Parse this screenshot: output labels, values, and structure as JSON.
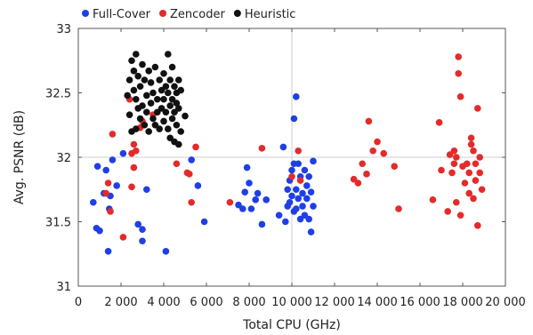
{
  "chart_data": {
    "type": "scatter",
    "title": "",
    "xlabel": "Total CPU (GHz)",
    "ylabel": "Avg. PSNR (dB)",
    "xlim": [
      0,
      20000
    ],
    "ylim": [
      31,
      33
    ],
    "x_ticks": [
      0,
      2000,
      4000,
      6000,
      8000,
      10000,
      12000,
      14000,
      16000,
      18000,
      20000
    ],
    "x_tick_labels": [
      "0",
      "2 000",
      "4 000",
      "6 000",
      "8 000",
      "10 000",
      "12 000",
      "14 000",
      "16 000",
      "18 000",
      "20 000"
    ],
    "y_ticks": [
      31,
      31.5,
      32,
      32.5,
      33
    ],
    "y_tick_labels": [
      "31",
      "31.5",
      "32",
      "32.5",
      "33"
    ],
    "grid": "major lines at x=10000 and y=32",
    "legend_position": "top",
    "series": [
      {
        "name": "Full-Cover",
        "color": "#1f3fe6",
        "points": [
          [
            700,
            31.65
          ],
          [
            850,
            31.45
          ],
          [
            900,
            31.93
          ],
          [
            1000,
            31.43
          ],
          [
            1200,
            31.72
          ],
          [
            1300,
            31.9
          ],
          [
            1400,
            31.27
          ],
          [
            1450,
            31.6
          ],
          [
            1500,
            31.7
          ],
          [
            1600,
            31.98
          ],
          [
            1800,
            31.78
          ],
          [
            2100,
            32.03
          ],
          [
            2800,
            31.48
          ],
          [
            3000,
            31.35
          ],
          [
            3000,
            31.44
          ],
          [
            3200,
            31.75
          ],
          [
            4100,
            31.27
          ],
          [
            5300,
            31.98
          ],
          [
            5600,
            31.78
          ],
          [
            5900,
            31.5
          ],
          [
            7500,
            31.63
          ],
          [
            7700,
            31.6
          ],
          [
            7800,
            31.73
          ],
          [
            7900,
            31.92
          ],
          [
            8000,
            31.8
          ],
          [
            8100,
            31.6
          ],
          [
            8300,
            31.67
          ],
          [
            8400,
            31.72
          ],
          [
            8600,
            31.48
          ],
          [
            8800,
            31.67
          ],
          [
            9400,
            31.55
          ],
          [
            9600,
            32.08
          ],
          [
            9700,
            31.5
          ],
          [
            9800,
            31.62
          ],
          [
            9800,
            31.75
          ],
          [
            9900,
            31.65
          ],
          [
            9900,
            31.82
          ],
          [
            10000,
            31.7
          ],
          [
            10000,
            31.9
          ],
          [
            10100,
            31.95
          ],
          [
            10100,
            31.58
          ],
          [
            10100,
            32.3
          ],
          [
            10200,
            31.6
          ],
          [
            10200,
            31.75
          ],
          [
            10200,
            32.47
          ],
          [
            10300,
            31.68
          ],
          [
            10300,
            31.95
          ],
          [
            10400,
            31.85
          ],
          [
            10400,
            31.52
          ],
          [
            10500,
            31.72
          ],
          [
            10500,
            31.62
          ],
          [
            10600,
            31.9
          ],
          [
            10600,
            31.55
          ],
          [
            10700,
            31.78
          ],
          [
            10700,
            31.68
          ],
          [
            10800,
            31.52
          ],
          [
            10800,
            31.85
          ],
          [
            10900,
            31.42
          ],
          [
            10900,
            31.73
          ],
          [
            11000,
            31.97
          ],
          [
            11000,
            31.62
          ]
        ]
      },
      {
        "name": "Zencoder",
        "color": "#e42a2a",
        "points": [
          [
            1300,
            31.72
          ],
          [
            1400,
            31.8
          ],
          [
            1500,
            31.58
          ],
          [
            1600,
            32.18
          ],
          [
            2100,
            31.38
          ],
          [
            2400,
            32.45
          ],
          [
            2500,
            32.03
          ],
          [
            2500,
            31.77
          ],
          [
            2600,
            32.1
          ],
          [
            2600,
            31.92
          ],
          [
            2700,
            32.05
          ],
          [
            2900,
            32.23
          ],
          [
            3000,
            32.28
          ],
          [
            3500,
            32.33
          ],
          [
            4600,
            31.95
          ],
          [
            5100,
            31.88
          ],
          [
            5200,
            31.87
          ],
          [
            5300,
            31.65
          ],
          [
            5500,
            32.08
          ],
          [
            7100,
            31.65
          ],
          [
            8600,
            32.07
          ],
          [
            10000,
            31.85
          ],
          [
            10300,
            32.05
          ],
          [
            10400,
            31.82
          ],
          [
            12900,
            31.83
          ],
          [
            13100,
            31.8
          ],
          [
            13300,
            31.95
          ],
          [
            13500,
            31.87
          ],
          [
            13600,
            32.28
          ],
          [
            13800,
            32.05
          ],
          [
            14000,
            32.12
          ],
          [
            14300,
            32.03
          ],
          [
            14800,
            31.93
          ],
          [
            15000,
            31.6
          ],
          [
            16600,
            31.67
          ],
          [
            16900,
            32.27
          ],
          [
            17000,
            31.9
          ],
          [
            17300,
            31.58
          ],
          [
            17400,
            32.02
          ],
          [
            17500,
            31.88
          ],
          [
            17600,
            32.05
          ],
          [
            17600,
            31.95
          ],
          [
            17700,
            31.65
          ],
          [
            17700,
            32.0
          ],
          [
            17800,
            32.78
          ],
          [
            17800,
            32.65
          ],
          [
            17900,
            31.55
          ],
          [
            17900,
            32.47
          ],
          [
            18000,
            31.93
          ],
          [
            18100,
            31.8
          ],
          [
            18200,
            31.95
          ],
          [
            18300,
            31.72
          ],
          [
            18300,
            31.88
          ],
          [
            18400,
            32.1
          ],
          [
            18400,
            32.15
          ],
          [
            18500,
            31.68
          ],
          [
            18500,
            32.05
          ],
          [
            18600,
            31.95
          ],
          [
            18600,
            31.82
          ],
          [
            18700,
            32.38
          ],
          [
            18700,
            31.47
          ],
          [
            18800,
            32.0
          ],
          [
            18800,
            31.88
          ],
          [
            18900,
            31.75
          ]
        ]
      },
      {
        "name": "Heuristic",
        "color": "#111111",
        "points": [
          [
            2300,
            32.48
          ],
          [
            2400,
            32.6
          ],
          [
            2400,
            32.33
          ],
          [
            2500,
            32.75
          ],
          [
            2500,
            32.2
          ],
          [
            2600,
            32.67
          ],
          [
            2600,
            32.52
          ],
          [
            2700,
            32.8
          ],
          [
            2700,
            32.45
          ],
          [
            2700,
            32.22
          ],
          [
            2800,
            32.63
          ],
          [
            2800,
            32.38
          ],
          [
            2900,
            32.55
          ],
          [
            2900,
            32.3
          ],
          [
            3000,
            32.72
          ],
          [
            3000,
            32.4
          ],
          [
            3100,
            32.6
          ],
          [
            3100,
            32.25
          ],
          [
            3200,
            32.48
          ],
          [
            3200,
            32.35
          ],
          [
            3300,
            32.67
          ],
          [
            3300,
            32.2
          ],
          [
            3400,
            32.58
          ],
          [
            3400,
            32.42
          ],
          [
            3500,
            32.5
          ],
          [
            3500,
            32.3
          ],
          [
            3600,
            32.7
          ],
          [
            3600,
            32.25
          ],
          [
            3700,
            32.45
          ],
          [
            3700,
            32.35
          ],
          [
            3800,
            32.6
          ],
          [
            3800,
            32.22
          ],
          [
            3900,
            32.52
          ],
          [
            3900,
            32.38
          ],
          [
            4000,
            32.65
          ],
          [
            4000,
            32.45
          ],
          [
            4000,
            32.28
          ],
          [
            4100,
            32.55
          ],
          [
            4100,
            32.35
          ],
          [
            4200,
            32.8
          ],
          [
            4200,
            32.5
          ],
          [
            4200,
            32.22
          ],
          [
            4300,
            32.6
          ],
          [
            4300,
            32.4
          ],
          [
            4300,
            32.15
          ],
          [
            4400,
            32.7
          ],
          [
            4400,
            32.45
          ],
          [
            4400,
            32.3
          ],
          [
            4500,
            32.55
          ],
          [
            4500,
            32.35
          ],
          [
            4500,
            32.12
          ],
          [
            4600,
            32.5
          ],
          [
            4600,
            32.42
          ],
          [
            4600,
            32.25
          ],
          [
            4700,
            32.6
          ],
          [
            4700,
            32.38
          ],
          [
            4700,
            32.1
          ],
          [
            4800,
            32.52
          ],
          [
            4800,
            32.2
          ],
          [
            5000,
            32.32
          ]
        ]
      }
    ]
  }
}
